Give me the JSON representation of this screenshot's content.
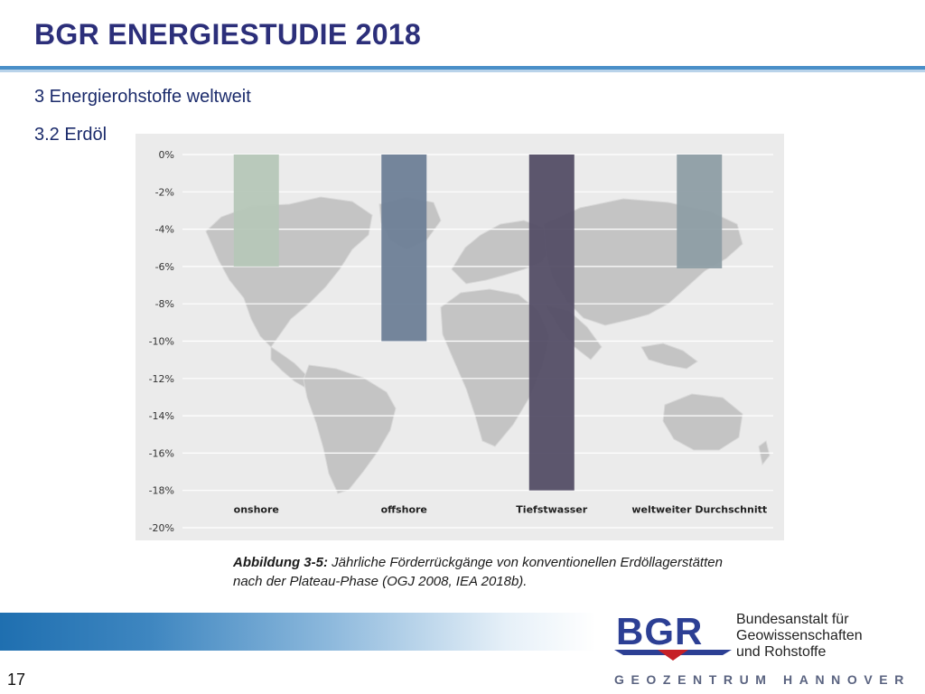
{
  "slide": {
    "title": "BGR ENERGIESTUDIE 2018",
    "section": "3 Energierohstoffe weltweit",
    "subsection": "3.2 Erdöl",
    "page_number": "17"
  },
  "caption": {
    "label": "Abbildung 3-5:",
    "text": " Jährliche Förderrückgänge von konventionellen Erdöllagerstätten nach der Plateau-Phase (OGJ 2008, IEA 2018b)."
  },
  "footer": {
    "org_lines": [
      "Bundesanstalt für",
      "Geowissenschaften",
      "und Rohstoffe"
    ],
    "tagline": "GEOZENTRUM HANNOVER",
    "logo_text": "BGR",
    "colors": {
      "bar_gradient_start": "#1f6fb0",
      "logo_blue": "#2c3f94",
      "logo_red": "#c62026"
    }
  },
  "chart_data": {
    "type": "bar",
    "title": "",
    "xlabel": "",
    "ylabel": "",
    "categories": [
      "onshore",
      "offshore",
      "Tiefstwasser",
      "weltweiter Durchschnitt"
    ],
    "values": [
      -6,
      -10,
      -18,
      -6.1
    ],
    "ylim": [
      -20,
      0
    ],
    "yticks": [
      "0%",
      "-2%",
      "-4%",
      "-6%",
      "-8%",
      "-10%",
      "-12%",
      "-14%",
      "-16%",
      "-18%",
      "-20%"
    ],
    "grid": true,
    "background": "world map (grey)",
    "colors": [
      "#b6c7b8",
      "#6e8097",
      "#544e66",
      "#8e9ea5"
    ]
  }
}
